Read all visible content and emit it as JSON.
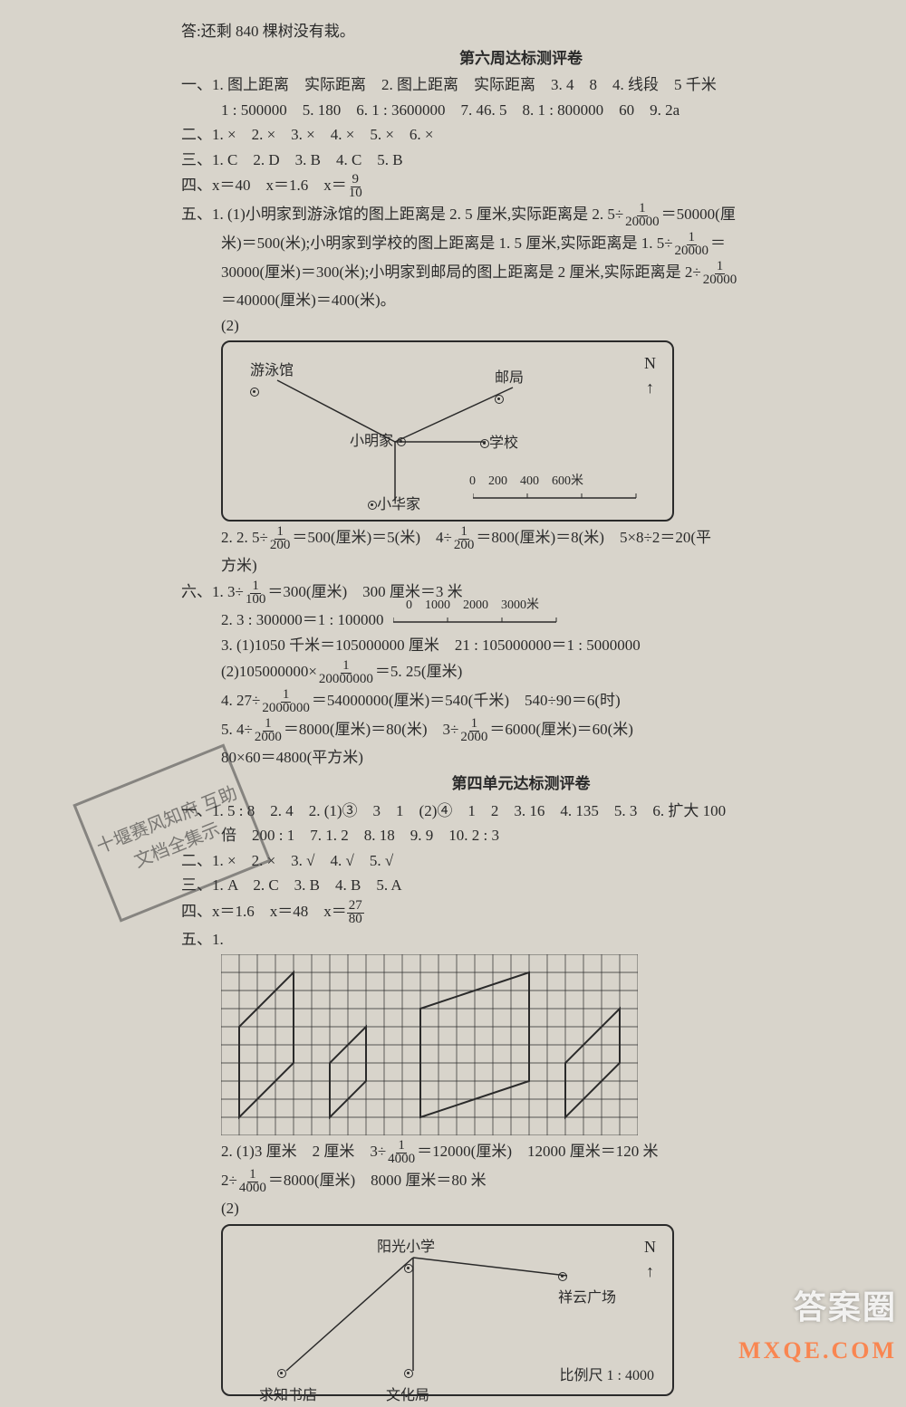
{
  "top_answer": "答:还剩 840 棵树没有栽。",
  "week6": {
    "title": "第六周达标测评卷",
    "l1": "一、1. 图上距离　实际距离　2. 图上距离　实际距离　3. 4　8　4. 线段　5 千米",
    "l1b": "1 : 500000　5. 180　6. 1 : 3600000　7. 46. 5　8. 1 : 800000　60　9. 2a",
    "l2": "二、1. ×　2. ×　3. ×　4. ×　5. ×　6. ×",
    "l3": "三、1. C　2. D　3. B　4. C　5. B",
    "l4a": "四、x＝40　x＝1.6　x＝",
    "l4_frac_n": "9",
    "l4_frac_d": "10",
    "l5a": "五、1. (1)小明家到游泳馆的图上距离是 2. 5 厘米,实际距离是 2. 5÷",
    "l5a_fn": "1",
    "l5a_fd": "20000",
    "l5a_end": "＝50000(厘",
    "l5b": "米)＝500(米);小明家到学校的图上距离是 1. 5 厘米,实际距离是 1. 5÷",
    "l5b_fn": "1",
    "l5b_fd": "20000",
    "l5b_end": "＝",
    "l5c": "30000(厘米)＝300(米);小明家到邮局的图上距离是 2 厘米,实际距离是 2÷",
    "l5c_fn": "1",
    "l5c_fd": "20000",
    "l5d": "＝40000(厘米)＝400(米)。",
    "l5e": "(2)",
    "dia1": {
      "pool": "游泳馆",
      "post": "邮局",
      "home": "小明家",
      "school": "学校",
      "hua": "小华家",
      "n": "N",
      "scale": "0　200　400　600米"
    },
    "l5_2a": "2. 2. 5÷",
    "l5_2a_fn": "1",
    "l5_2a_fd": "200",
    "l5_2a_mid": "＝500(厘米)＝5(米)　4÷",
    "l5_2a_fn2": "1",
    "l5_2a_fd2": "200",
    "l5_2a_end": "＝800(厘米)＝8(米)　5×8÷2＝20(平",
    "l5_2b": "方米)",
    "l6_1": "六、1. 3÷",
    "l6_1_fn": "1",
    "l6_1_fd": "100",
    "l6_1_end": "＝300(厘米)　300 厘米＝3 米",
    "l6_2": "2. 3 : 300000＝1 : 100000",
    "l6_2_scale": "0　1000　2000　3000米",
    "l6_3": "3. (1)1050 千米＝105000000 厘米　21 : 105000000＝1 : 5000000",
    "l6_3b": "(2)105000000×",
    "l6_3b_fn": "1",
    "l6_3b_fd": "20000000",
    "l6_3b_end": "＝5. 25(厘米)",
    "l6_4": "4. 27÷",
    "l6_4_fn": "1",
    "l6_4_fd": "2000000",
    "l6_4_end": "＝54000000(厘米)＝540(千米)　540÷90＝6(时)",
    "l6_5": "5. 4÷",
    "l6_5_fn": "1",
    "l6_5_fd": "2000",
    "l6_5_mid": "＝8000(厘米)＝80(米)　3÷",
    "l6_5_fn2": "1",
    "l6_5_fd2": "2000",
    "l6_5_end": "＝6000(厘米)＝60(米)",
    "l6_5b": "80×60＝4800(平方米)"
  },
  "unit4": {
    "title": "第四单元达标测评卷",
    "l1": "一、1. 5 : 8　2. 4　2. (1)③　3　1　(2)④　1　2　3. 16　4. 135　5. 3　6. 扩大 100",
    "l1b": "倍　200 : 1　7. 1. 2　8. 18　9. 9　10. 2 : 3",
    "l2": "二、1. ×　2. ×　3. √　4. √　5. √",
    "l3": "三、1. A　2. C　3. B　4. B　5. A",
    "l4": "四、x＝1.6　x＝48　x＝",
    "l4_fn": "27",
    "l4_fd": "80",
    "l5": "五、1.",
    "l5_2": "2. (1)3 厘米　2 厘米　3÷",
    "l5_2_fn": "1",
    "l5_2_fd": "4000",
    "l5_2_end": "＝12000(厘米)　12000 厘米＝120 米",
    "l5_2b": "2÷",
    "l5_2b_fn": "1",
    "l5_2b_fd": "4000",
    "l5_2b_end": "＝8000(厘米)　8000 厘米＝80 米",
    "l5_2c": "(2)",
    "dia2": {
      "sun": "阳光小学",
      "cloud": "祥云广场",
      "book": "求知书店",
      "cult": "文化局",
      "n": "N",
      "scale": "比例尺 1 : 4000"
    }
  },
  "watermark1": "答案圈",
  "watermark2": "MXQE.COM",
  "stamp_text": "十堰赛风知府\n互助文档全集示",
  "colors": {
    "bg": "#d8d4cb",
    "text": "#2a2a2a",
    "border": "#2a2a2a",
    "stamp": "#444",
    "wm1": "rgba(255,255,255,0.85)",
    "wm2": "rgba(255,120,60,0.85)"
  }
}
